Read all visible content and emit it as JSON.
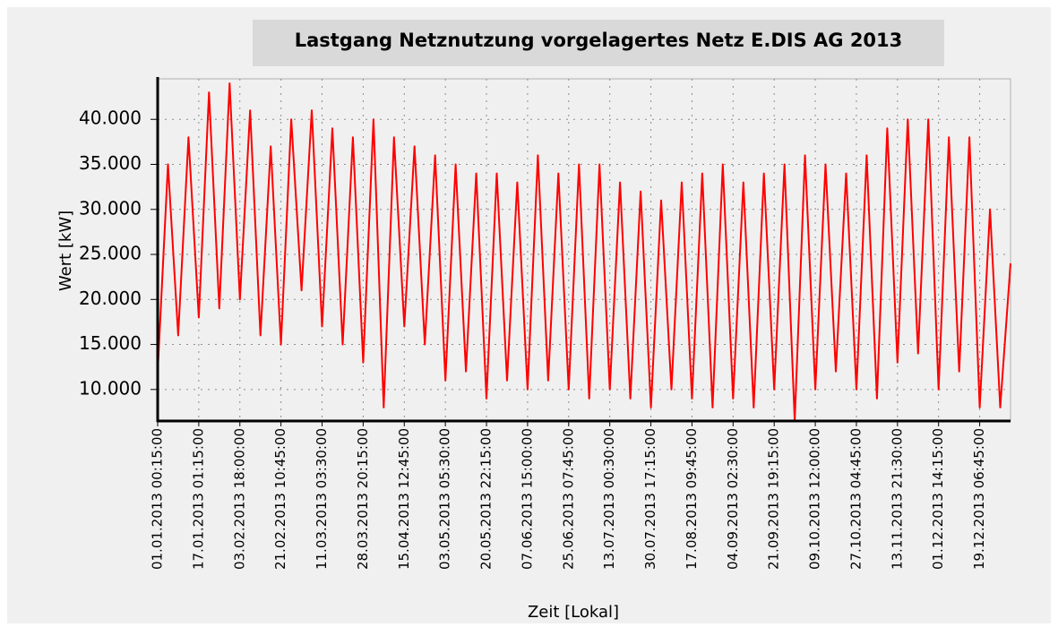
{
  "chart_data": {
    "type": "line",
    "title": "Lastgang Netznutzung vorgelagertes Netz E.DIS AG 2013",
    "x_label": "Zeit [Lokal]",
    "y_label": "Wert [kW]",
    "color": "#ff0000",
    "grid": true,
    "categories": [
      "01.01.2013 00:15:00",
      null,
      null,
      null,
      "17.01.2013 01:15:00",
      null,
      null,
      null,
      "03.02.2013 18:00:00",
      null,
      null,
      null,
      "21.02.2013 10:45:00",
      null,
      null,
      null,
      "11.03.2013 03:30:00",
      null,
      null,
      null,
      "28.03.2013 20:15:00",
      null,
      null,
      null,
      "15.04.2013 12:45:00",
      null,
      null,
      null,
      "03.05.2013 05:30:00",
      null,
      null,
      null,
      "20.05.2013 22:15:00",
      null,
      null,
      null,
      "07.06.2013 15:00:00",
      null,
      null,
      null,
      "25.06.2013 07:45:00",
      null,
      null,
      null,
      "13.07.2013 00:30:00",
      null,
      null,
      null,
      "30.07.2013 17:15:00",
      null,
      null,
      null,
      "17.08.2013 09:45:00",
      null,
      null,
      null,
      "04.09.2013 02:30:00",
      null,
      null,
      null,
      "21.09.2013 19:15:00",
      null,
      null,
      null,
      "09.10.2013 12:00:00",
      null,
      null,
      null,
      "27.10.2013 04:45:00",
      null,
      null,
      null,
      "13.11.2013 21:30:00",
      null,
      null,
      null,
      "01.12.2013 14:15:00",
      null,
      null,
      null,
      "19.12.2013 06:45:00",
      null,
      null,
      null
    ],
    "values": [
      12000,
      35000,
      16000,
      38000,
      18000,
      43000,
      19000,
      44000,
      20000,
      41000,
      16000,
      37000,
      15000,
      40000,
      21000,
      41000,
      17000,
      39000,
      15000,
      38000,
      13000,
      40000,
      8000,
      38000,
      17000,
      37000,
      15000,
      36000,
      11000,
      35000,
      12000,
      34000,
      9000,
      34000,
      11000,
      33000,
      10000,
      36000,
      11000,
      34000,
      10000,
      35000,
      9000,
      35000,
      10000,
      33000,
      9000,
      32000,
      8000,
      31000,
      10000,
      33000,
      9000,
      34000,
      8000,
      35000,
      9000,
      33000,
      8000,
      34000,
      10000,
      35000,
      6500,
      36000,
      10000,
      35000,
      12000,
      34000,
      10000,
      36000,
      9000,
      39000,
      13000,
      40000,
      14000,
      40000,
      10000,
      38000,
      12000,
      38000,
      8000,
      30000,
      8000,
      24000
    ],
    "ylim": [
      6500,
      44500
    ],
    "yticks": [
      {
        "value": 10000,
        "label": "10.000"
      },
      {
        "value": 15000,
        "label": "15.000"
      },
      {
        "value": 20000,
        "label": "20.000"
      },
      {
        "value": 25000,
        "label": "25.000"
      },
      {
        "value": 30000,
        "label": "30.000"
      },
      {
        "value": 35000,
        "label": "35.000"
      },
      {
        "value": 40000,
        "label": "40.000"
      }
    ]
  }
}
